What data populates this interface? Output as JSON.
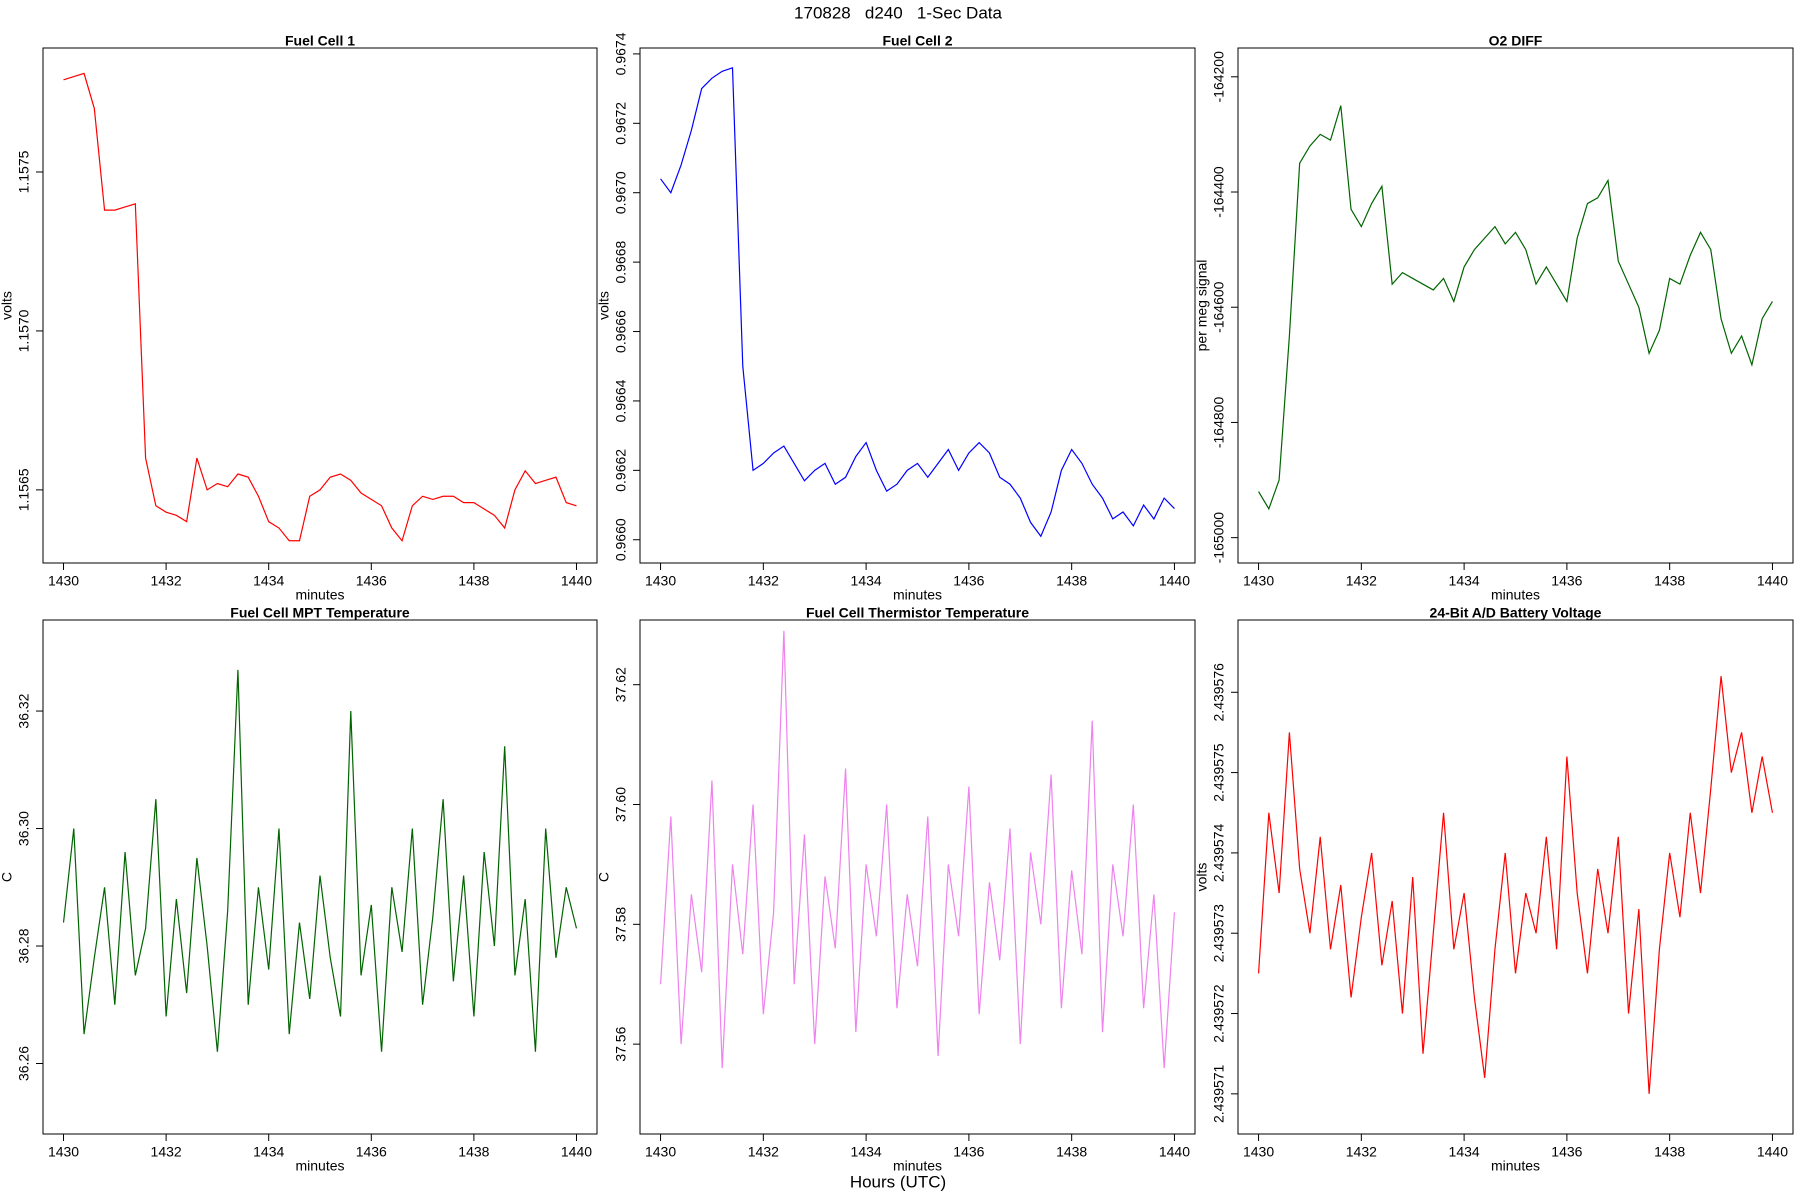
{
  "title": "170828   d240   1-Sec Data",
  "xlabel": "Hours (UTC)",
  "chart_data": [
    {
      "type": "line",
      "title": "Fuel Cell 1",
      "xlabel": "minutes",
      "ylabel": "volts",
      "color": "#ff0000",
      "xlim": [
        1429.6,
        1440.4
      ],
      "xticks": [
        1430,
        1432,
        1434,
        1436,
        1438,
        1440
      ],
      "ylim": [
        1.15627,
        1.15789
      ],
      "yticks": [
        1.1565,
        {
          "value": 1.157,
          "label": "1.1570"
        },
        1.1575
      ],
      "x": [
        1430,
        1430.2,
        1430.4,
        1430.6,
        1430.8,
        1431,
        1431.2,
        1431.4,
        1431.6,
        1431.8,
        1432,
        1432.2,
        1432.4,
        1432.6,
        1432.8,
        1433,
        1433.2,
        1433.4,
        1433.6,
        1433.8,
        1434,
        1434.2,
        1434.4,
        1434.6,
        1434.8,
        1435,
        1435.2,
        1435.4,
        1435.6,
        1435.8,
        1436,
        1436.2,
        1436.4,
        1436.6,
        1436.8,
        1437,
        1437.2,
        1437.4,
        1437.6,
        1437.8,
        1438,
        1438.2,
        1438.4,
        1438.6,
        1438.8,
        1439,
        1439.2,
        1439.4,
        1439.6,
        1439.8,
        1440
      ],
      "values": [
        1.15779,
        1.1578,
        1.15781,
        1.1577,
        1.15738,
        1.15738,
        1.15739,
        1.1574,
        1.1566,
        1.15645,
        1.15643,
        1.15642,
        1.1564,
        1.1566,
        1.1565,
        1.15652,
        1.15651,
        1.15655,
        1.15654,
        1.15648,
        1.1564,
        1.15638,
        1.15634,
        1.15634,
        1.15648,
        1.1565,
        1.15654,
        1.15655,
        1.15653,
        1.15649,
        1.15647,
        1.15645,
        1.15638,
        1.15634,
        1.15645,
        1.15648,
        1.15647,
        1.15648,
        1.15648,
        1.15646,
        1.15646,
        1.15644,
        1.15642,
        1.15638,
        1.1565,
        1.15656,
        1.15652,
        1.15653,
        1.15654,
        1.15646,
        1.15645
      ]
    },
    {
      "type": "line",
      "title": "Fuel Cell 2",
      "xlabel": "minutes",
      "ylabel": "volts",
      "color": "#0000ff",
      "xlim": [
        1429.6,
        1440.4
      ],
      "xticks": [
        1430,
        1432,
        1434,
        1436,
        1438,
        1440
      ],
      "ylim": [
        0.965933,
        0.967417
      ],
      "yticks": [
        {
          "value": 0.966,
          "label": "0.9660"
        },
        0.9662,
        0.9664,
        0.9666,
        0.9668,
        {
          "value": 0.967,
          "label": "0.9670"
        },
        0.9672,
        0.9674
      ],
      "x": [
        1430,
        1430.2,
        1430.4,
        1430.6,
        1430.8,
        1431,
        1431.2,
        1431.4,
        1431.6,
        1431.8,
        1432,
        1432.2,
        1432.4,
        1432.6,
        1432.8,
        1433,
        1433.2,
        1433.4,
        1433.6,
        1433.8,
        1434,
        1434.2,
        1434.4,
        1434.6,
        1434.8,
        1435,
        1435.2,
        1435.4,
        1435.6,
        1435.8,
        1436,
        1436.2,
        1436.4,
        1436.6,
        1436.8,
        1437,
        1437.2,
        1437.4,
        1437.6,
        1437.8,
        1438,
        1438.2,
        1438.4,
        1438.6,
        1438.8,
        1439,
        1439.2,
        1439.4,
        1439.6,
        1439.8,
        1440
      ],
      "values": [
        0.96704,
        0.967,
        0.96708,
        0.96718,
        0.9673,
        0.96733,
        0.96735,
        0.96736,
        0.9665,
        0.9662,
        0.96622,
        0.96625,
        0.96627,
        0.96622,
        0.96617,
        0.9662,
        0.96622,
        0.96616,
        0.96618,
        0.96624,
        0.96628,
        0.9662,
        0.96614,
        0.96616,
        0.9662,
        0.96622,
        0.96618,
        0.96622,
        0.96626,
        0.9662,
        0.96625,
        0.96628,
        0.96625,
        0.96618,
        0.96616,
        0.96612,
        0.96605,
        0.96601,
        0.96608,
        0.9662,
        0.96626,
        0.96622,
        0.96616,
        0.96612,
        0.96606,
        0.96608,
        0.96604,
        0.9661,
        0.96606,
        0.96612,
        0.96609
      ]
    },
    {
      "type": "line",
      "title": "O2 DIFF",
      "xlabel": "minutes",
      "ylabel": "per meg signal",
      "color": "#006400",
      "xlim": [
        1429.6,
        1440.4
      ],
      "xticks": [
        1430,
        1432,
        1434,
        1436,
        1438,
        1440
      ],
      "ylim": [
        -165044,
        -164150
      ],
      "yticks": [
        -165000,
        -164800,
        -164600,
        -164400,
        -164200
      ],
      "x": [
        1430,
        1430.2,
        1430.4,
        1430.6,
        1430.8,
        1431,
        1431.2,
        1431.4,
        1431.6,
        1431.8,
        1432,
        1432.2,
        1432.4,
        1432.6,
        1432.8,
        1433,
        1433.2,
        1433.4,
        1433.6,
        1433.8,
        1434,
        1434.2,
        1434.4,
        1434.6,
        1434.8,
        1435,
        1435.2,
        1435.4,
        1435.6,
        1435.8,
        1436,
        1436.2,
        1436.4,
        1436.6,
        1436.8,
        1437,
        1437.2,
        1437.4,
        1437.6,
        1437.8,
        1438,
        1438.2,
        1438.4,
        1438.6,
        1438.8,
        1439,
        1439.2,
        1439.4,
        1439.6,
        1439.8,
        1440
      ],
      "values": [
        -164920,
        -164950,
        -164900,
        -164650,
        -164350,
        -164320,
        -164300,
        -164310,
        -164250,
        -164430,
        -164460,
        -164420,
        -164390,
        -164560,
        -164540,
        -164550,
        -164560,
        -164570,
        -164550,
        -164590,
        -164530,
        -164500,
        -164480,
        -164460,
        -164490,
        -164470,
        -164500,
        -164560,
        -164530,
        -164560,
        -164590,
        -164480,
        -164420,
        -164410,
        -164380,
        -164520,
        -164560,
        -164600,
        -164680,
        -164640,
        -164550,
        -164560,
        -164510,
        -164470,
        -164500,
        -164620,
        -164680,
        -164650,
        -164700,
        -164620,
        -164590
      ]
    },
    {
      "type": "line",
      "title": "Fuel Cell MPT Temperature",
      "xlabel": "minutes",
      "ylabel": "C",
      "color": "#006400",
      "xlim": [
        1429.6,
        1440.4
      ],
      "xticks": [
        1430,
        1432,
        1434,
        1436,
        1438,
        1440
      ],
      "ylim": [
        36.248,
        36.3355
      ],
      "yticks": [
        36.26,
        36.28,
        {
          "value": 36.3,
          "label": "36.30"
        },
        36.32
      ],
      "x": [
        1430,
        1430.2,
        1430.4,
        1430.6,
        1430.8,
        1431,
        1431.2,
        1431.4,
        1431.6,
        1431.8,
        1432,
        1432.2,
        1432.4,
        1432.6,
        1432.8,
        1433,
        1433.2,
        1433.4,
        1433.6,
        1433.8,
        1434,
        1434.2,
        1434.4,
        1434.6,
        1434.8,
        1435,
        1435.2,
        1435.4,
        1435.6,
        1435.8,
        1436,
        1436.2,
        1436.4,
        1436.6,
        1436.8,
        1437,
        1437.2,
        1437.4,
        1437.6,
        1437.8,
        1438,
        1438.2,
        1438.4,
        1438.6,
        1438.8,
        1439,
        1439.2,
        1439.4,
        1439.6,
        1439.8,
        1440
      ],
      "values": [
        36.284,
        36.3,
        36.265,
        36.278,
        36.29,
        36.27,
        36.296,
        36.275,
        36.283,
        36.305,
        36.268,
        36.288,
        36.272,
        36.295,
        36.28,
        36.262,
        36.286,
        36.327,
        36.27,
        36.29,
        36.276,
        36.3,
        36.265,
        36.284,
        36.271,
        36.292,
        36.278,
        36.268,
        36.32,
        36.275,
        36.287,
        36.262,
        36.29,
        36.279,
        36.3,
        36.27,
        36.285,
        36.305,
        36.274,
        36.292,
        36.268,
        36.296,
        36.28,
        36.314,
        36.275,
        36.288,
        36.262,
        36.3,
        36.278,
        36.29,
        36.283
      ]
    },
    {
      "type": "line",
      "title": "Fuel Cell Thermistor Temperature",
      "xlabel": "minutes",
      "ylabel": "C",
      "color": "#ee82ee",
      "xlim": [
        1429.6,
        1440.4
      ],
      "xticks": [
        1430,
        1432,
        1434,
        1436,
        1438,
        1440
      ],
      "ylim": [
        37.545,
        37.6308
      ],
      "yticks": [
        37.56,
        37.58,
        {
          "value": 37.6,
          "label": "37.60"
        },
        37.62
      ],
      "x": [
        1430,
        1430.2,
        1430.4,
        1430.6,
        1430.8,
        1431,
        1431.2,
        1431.4,
        1431.6,
        1431.8,
        1432,
        1432.2,
        1432.4,
        1432.6,
        1432.8,
        1433,
        1433.2,
        1433.4,
        1433.6,
        1433.8,
        1434,
        1434.2,
        1434.4,
        1434.6,
        1434.8,
        1435,
        1435.2,
        1435.4,
        1435.6,
        1435.8,
        1436,
        1436.2,
        1436.4,
        1436.6,
        1436.8,
        1437,
        1437.2,
        1437.4,
        1437.6,
        1437.8,
        1438,
        1438.2,
        1438.4,
        1438.6,
        1438.8,
        1439,
        1439.2,
        1439.4,
        1439.6,
        1439.8,
        1440
      ],
      "values": [
        37.57,
        37.598,
        37.56,
        37.585,
        37.572,
        37.604,
        37.556,
        37.59,
        37.575,
        37.6,
        37.565,
        37.582,
        37.629,
        37.57,
        37.595,
        37.56,
        37.588,
        37.576,
        37.606,
        37.562,
        37.59,
        37.578,
        37.6,
        37.566,
        37.585,
        37.573,
        37.598,
        37.558,
        37.59,
        37.578,
        37.603,
        37.565,
        37.587,
        37.574,
        37.596,
        37.56,
        37.592,
        37.58,
        37.605,
        37.566,
        37.589,
        37.575,
        37.614,
        37.562,
        37.59,
        37.578,
        37.6,
        37.566,
        37.585,
        37.556,
        37.582
      ]
    },
    {
      "type": "line",
      "title": "24-Bit A/D Battery Voltage",
      "xlabel": "minutes",
      "ylabel": "volts",
      "color": "#ff0000",
      "xlim": [
        1429.6,
        1440.4
      ],
      "xticks": [
        1430,
        1432,
        1434,
        1436,
        1438,
        1440
      ],
      "ylim": [
        2.4395705,
        2.4395769
      ],
      "yticks": [
        2.439571,
        2.439572,
        2.439573,
        2.439574,
        2.439575,
        2.439576
      ],
      "x": [
        1430,
        1430.2,
        1430.4,
        1430.6,
        1430.8,
        1431,
        1431.2,
        1431.4,
        1431.6,
        1431.8,
        1432,
        1432.2,
        1432.4,
        1432.6,
        1432.8,
        1433,
        1433.2,
        1433.4,
        1433.6,
        1433.8,
        1434,
        1434.2,
        1434.4,
        1434.6,
        1434.8,
        1435,
        1435.2,
        1435.4,
        1435.6,
        1435.8,
        1436,
        1436.2,
        1436.4,
        1436.6,
        1436.8,
        1437,
        1437.2,
        1437.4,
        1437.6,
        1437.8,
        1438,
        1438.2,
        1438.4,
        1438.6,
        1438.8,
        1439,
        1439.2,
        1439.4,
        1439.6,
        1439.8,
        1440
      ],
      "values": [
        2.4395725,
        2.4395745,
        2.4395735,
        2.4395755,
        2.4395738,
        2.439573,
        2.4395742,
        2.4395728,
        2.4395736,
        2.4395722,
        2.4395732,
        2.439574,
        2.4395726,
        2.4395734,
        2.439572,
        2.4395737,
        2.4395715,
        2.439573,
        2.4395745,
        2.4395728,
        2.4395735,
        2.4395722,
        2.4395712,
        2.4395728,
        2.439574,
        2.4395725,
        2.4395735,
        2.439573,
        2.4395742,
        2.4395728,
        2.4395752,
        2.4395735,
        2.4395725,
        2.4395738,
        2.439573,
        2.4395742,
        2.439572,
        2.4395733,
        2.439571,
        2.4395728,
        2.439574,
        2.4395732,
        2.4395745,
        2.4395735,
        2.4395748,
        2.4395762,
        2.439575,
        2.4395755,
        2.4395745,
        2.4395752,
        2.4395745
      ]
    }
  ]
}
